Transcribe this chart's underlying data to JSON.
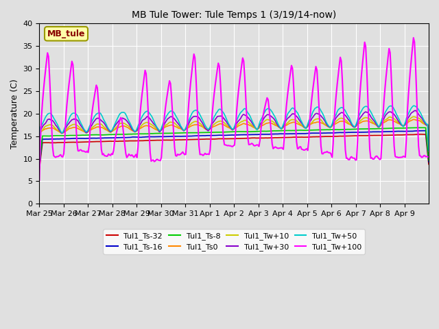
{
  "title": "MB Tule Tower: Tule Temps 1 (3/19/14-now)",
  "ylabel": "Temperature (C)",
  "ylim": [
    0,
    40
  ],
  "yticks": [
    0,
    5,
    10,
    15,
    20,
    25,
    30,
    35,
    40
  ],
  "bg_color": "#e0e0e0",
  "legend_box_label": "MB_tule",
  "series": [
    {
      "label": "Tul1_Ts-32",
      "color": "#cc0000",
      "lw": 1.2
    },
    {
      "label": "Tul1_Ts-16",
      "color": "#0000cc",
      "lw": 1.2
    },
    {
      "label": "Tul1_Ts-8",
      "color": "#00cc00",
      "lw": 1.2
    },
    {
      "label": "Tul1_Ts0",
      "color": "#ff8800",
      "lw": 1.2
    },
    {
      "label": "Tul1_Tw+10",
      "color": "#cccc00",
      "lw": 1.2
    },
    {
      "label": "Tul1_Tw+30",
      "color": "#8800cc",
      "lw": 1.2
    },
    {
      "label": "Tul1_Tw+50",
      "color": "#00cccc",
      "lw": 1.2
    },
    {
      "label": "Tul1_Tw+100",
      "color": "#ff00ff",
      "lw": 1.5
    }
  ],
  "x_tick_labels": [
    "Mar 25",
    "Mar 26",
    "Mar 27",
    "Mar 28",
    "Mar 29",
    "Mar 30",
    "Mar 31",
    "Apr 1",
    "Apr 2",
    "Apr 3",
    "Apr 4",
    "Apr 5",
    "Apr 6",
    "Apr 7",
    "Apr 8",
    "Apr 9"
  ],
  "n_days": 16,
  "peak_heights": [
    34.5,
    32.5,
    27.0,
    19.5,
    30.5,
    28.0,
    34.2,
    32.0,
    33.2,
    24.0,
    31.5,
    31.3,
    33.5,
    37.0,
    35.5,
    38.0
  ],
  "trough_heights": [
    10.5,
    11.5,
    10.8,
    10.5,
    9.5,
    11.0,
    11.0,
    13.0,
    13.2,
    12.5,
    12.2,
    11.2,
    10.0,
    10.0,
    10.5,
    10.5
  ]
}
